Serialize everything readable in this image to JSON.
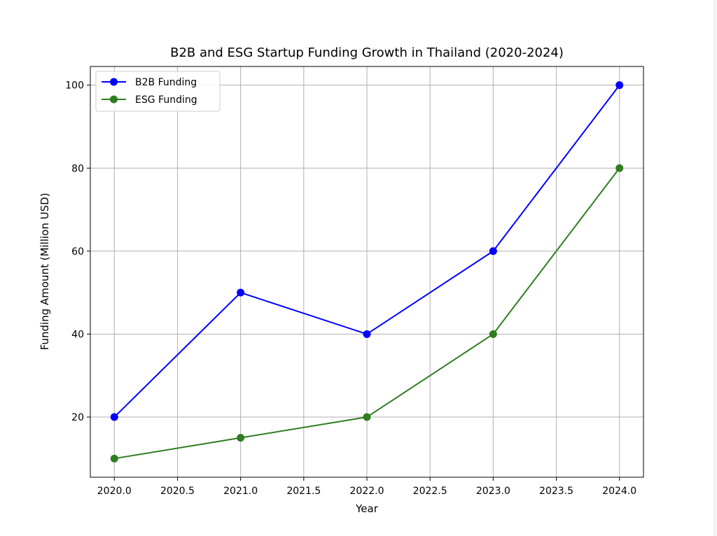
{
  "chart_data": {
    "type": "line",
    "title": "B2B and ESG Startup Funding Growth in Thailand (2020-2024)",
    "xlabel": "Year",
    "ylabel": "Funding Amount (Million USD)",
    "x": [
      2020,
      2021,
      2022,
      2023,
      2024
    ],
    "series": [
      {
        "name": "B2B Funding",
        "values": [
          20,
          50,
          40,
          60,
          100
        ],
        "color": "#0000ff",
        "marker": "circle"
      },
      {
        "name": "ESG Funding",
        "values": [
          10,
          15,
          20,
          40,
          80
        ],
        "color": "#2e7d1f",
        "marker": "circle"
      }
    ],
    "xlim": [
      2019.81,
      2024.19
    ],
    "ylim": [
      5.5,
      104.5
    ],
    "xticks": [
      2020.0,
      2020.5,
      2021.0,
      2021.5,
      2022.0,
      2022.5,
      2023.0,
      2023.5,
      2024.0
    ],
    "xtick_labels": [
      "2020.0",
      "2020.5",
      "2021.0",
      "2021.5",
      "2022.0",
      "2022.5",
      "2023.0",
      "2023.5",
      "2024.0"
    ],
    "yticks": [
      20,
      40,
      60,
      80,
      100
    ],
    "ytick_labels": [
      "20",
      "40",
      "60",
      "80",
      "100"
    ],
    "grid": true,
    "legend_position": "upper-left"
  }
}
